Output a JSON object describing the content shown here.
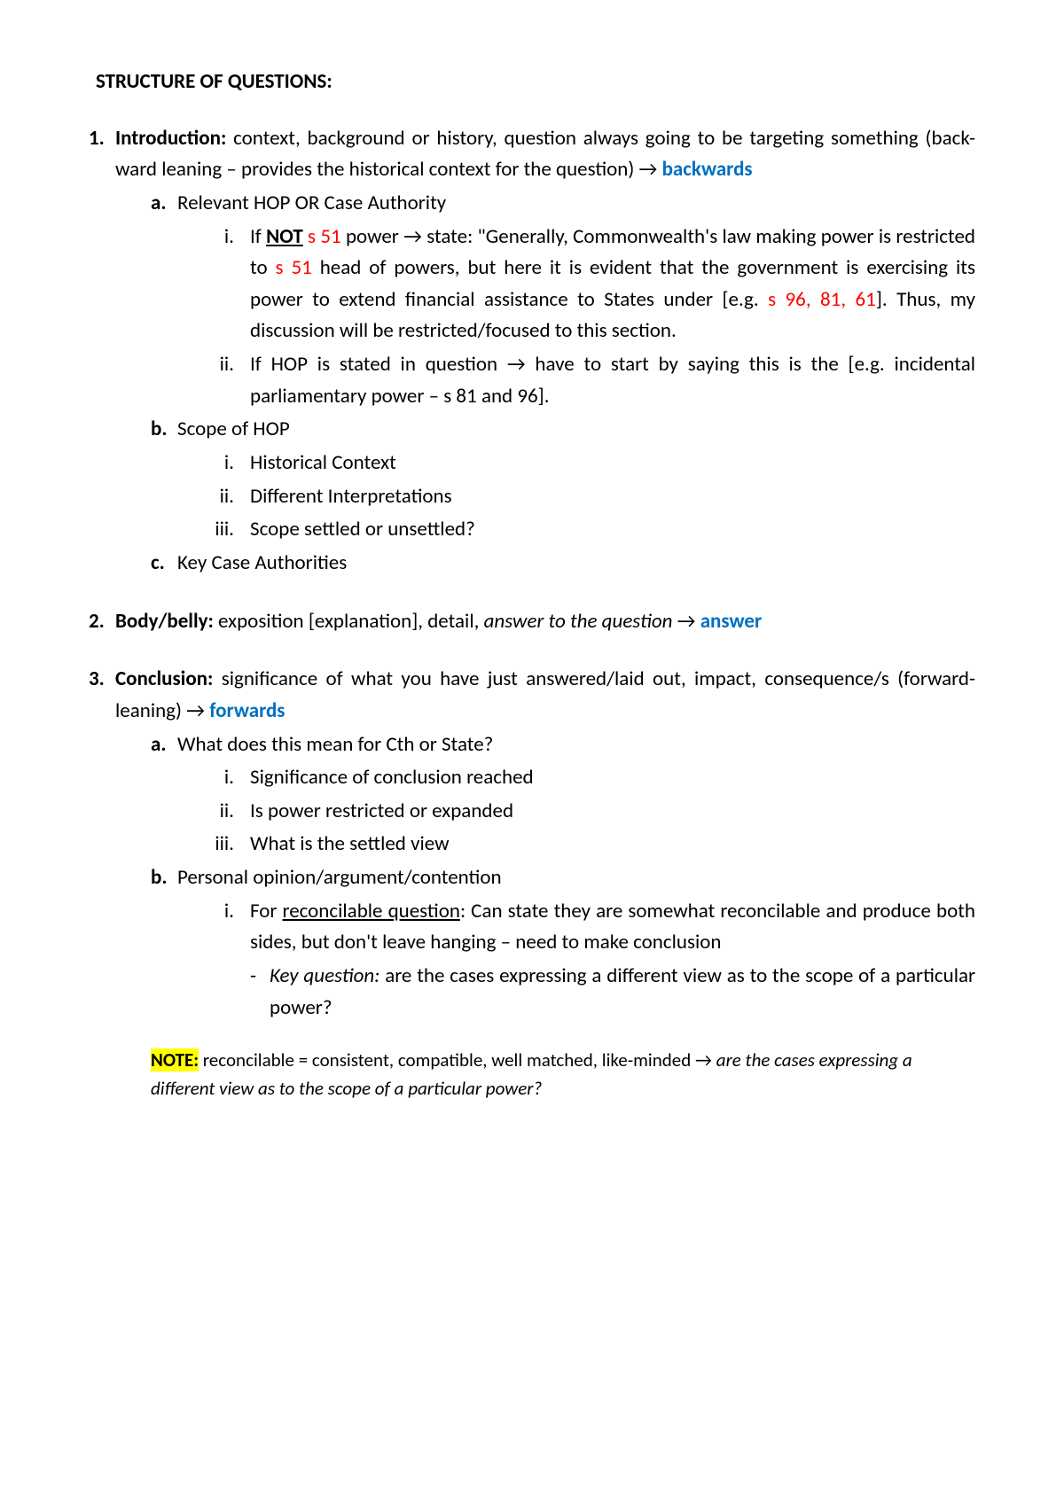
{
  "heading": "STRUCTURE OF QUESTIONS:",
  "sections": {
    "s1": {
      "num": "1.",
      "title": "Introduction:",
      "body_pre": " context, background or history, question always going to be targeting something (back-ward leaning – provides the historical context for the question) → ",
      "blue": "backwards",
      "a": {
        "num": "a.",
        "text": "Relevant HOP OR Case Authority",
        "i1": {
          "num": "i.",
          "p1": "If ",
          "not": "NOT",
          "p2": " ",
          "red1": "s 51",
          "p3": " power → state: \"Generally, Commonwealth's law making power is restricted to ",
          "red2": "s 51",
          "p4": " head of powers, but here it is evident that the government is exercising its power to extend financial assistance to States under [e.g. ",
          "red3": "s 96, 81, 61",
          "p5": "]. Thus, my discussion will be restricted/focused to this section."
        },
        "i2": {
          "num": "ii.",
          "text": "If HOP is stated in question → have to start by saying this is the [e.g. incidental parliamentary power – s 81 and 96]."
        }
      },
      "b": {
        "num": "b.",
        "text": "Scope of HOP",
        "i1": {
          "num": "i.",
          "text": "Historical Context"
        },
        "i2": {
          "num": "ii.",
          "text": "Different Interpretations"
        },
        "i3": {
          "num": "iii.",
          "text": "Scope settled or unsettled?"
        }
      },
      "c": {
        "num": "c.",
        "text": "Key Case Authorities"
      }
    },
    "s2": {
      "num": "2.",
      "title": "Body/belly:",
      "p1": " exposition [explanation], detail, ",
      "it": "answer to the question",
      "p2": " → ",
      "blue": "answer"
    },
    "s3": {
      "num": "3.",
      "title": "Conclusion:",
      "p1": "  significance of what you have just answered/laid out, impact, consequence/s (forward-leaning) → ",
      "blue": "forwards",
      "a": {
        "num": "a.",
        "text": "What does this mean for Cth or State?",
        "i1": {
          "num": "i.",
          "text": "Significance of conclusion reached"
        },
        "i2": {
          "num": "ii.",
          "text": "Is power restricted or expanded"
        },
        "i3": {
          "num": "iii.",
          "text": "What is the settled view"
        }
      },
      "b": {
        "num": "b.",
        "text": "Personal opinion/argument/contention",
        "i1": {
          "num": "i.",
          "p1": "For ",
          "u": "reconcilable question",
          "p2": ": Can state they are somewhat reconcilable and produce both sides, but don't leave hanging – need to make conclusion"
        },
        "dash": {
          "num": "-",
          "kq": "Key question:",
          "text": " are the cases expressing a different view as to the scope of a particular power?"
        }
      }
    },
    "note": {
      "label": "NOTE:",
      "p1": " reconcilable = consistent, compatible, well matched, like-minded → ",
      "it": "are the cases expressing a different view as to the scope of a particular power?"
    }
  }
}
